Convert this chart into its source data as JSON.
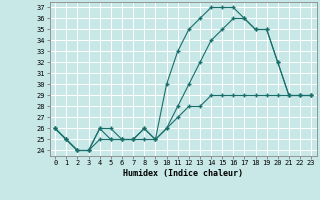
{
  "xlabel": "Humidex (Indice chaleur)",
  "background_color": "#c8e8e8",
  "grid_color": "#ffffff",
  "line_color": "#1a6e6a",
  "xlim": [
    -0.5,
    23.5
  ],
  "ylim": [
    23.5,
    37.5
  ],
  "xticks": [
    0,
    1,
    2,
    3,
    4,
    5,
    6,
    7,
    8,
    9,
    10,
    11,
    12,
    13,
    14,
    15,
    16,
    17,
    18,
    19,
    20,
    21,
    22,
    23
  ],
  "yticks": [
    24,
    25,
    26,
    27,
    28,
    29,
    30,
    31,
    32,
    33,
    34,
    35,
    36,
    37
  ],
  "line1_x": [
    0,
    1,
    2,
    3,
    4,
    5,
    6,
    7,
    8,
    9,
    10,
    11,
    12,
    13,
    14,
    15,
    16,
    17,
    18,
    19,
    20,
    21,
    22,
    23
  ],
  "line1_y": [
    26,
    25,
    24,
    24,
    26,
    26,
    25,
    25,
    26,
    25,
    30,
    33,
    35,
    36,
    37,
    37,
    37,
    36,
    35,
    35,
    32,
    29,
    29,
    29
  ],
  "line2_x": [
    0,
    1,
    2,
    3,
    4,
    5,
    6,
    7,
    8,
    9,
    10,
    11,
    12,
    13,
    14,
    15,
    16,
    17,
    18,
    19,
    20,
    21,
    22,
    23
  ],
  "line2_y": [
    26,
    25,
    24,
    24,
    26,
    25,
    25,
    25,
    26,
    25,
    26,
    28,
    30,
    32,
    34,
    35,
    36,
    36,
    35,
    35,
    32,
    29,
    29,
    29
  ],
  "line3_x": [
    0,
    1,
    2,
    3,
    4,
    5,
    6,
    7,
    8,
    9,
    10,
    11,
    12,
    13,
    14,
    15,
    16,
    17,
    18,
    19,
    20,
    21,
    22,
    23
  ],
  "line3_y": [
    26,
    25,
    24,
    24,
    25,
    25,
    25,
    25,
    25,
    25,
    26,
    27,
    28,
    28,
    29,
    29,
    29,
    29,
    29,
    29,
    29,
    29,
    29,
    29
  ]
}
